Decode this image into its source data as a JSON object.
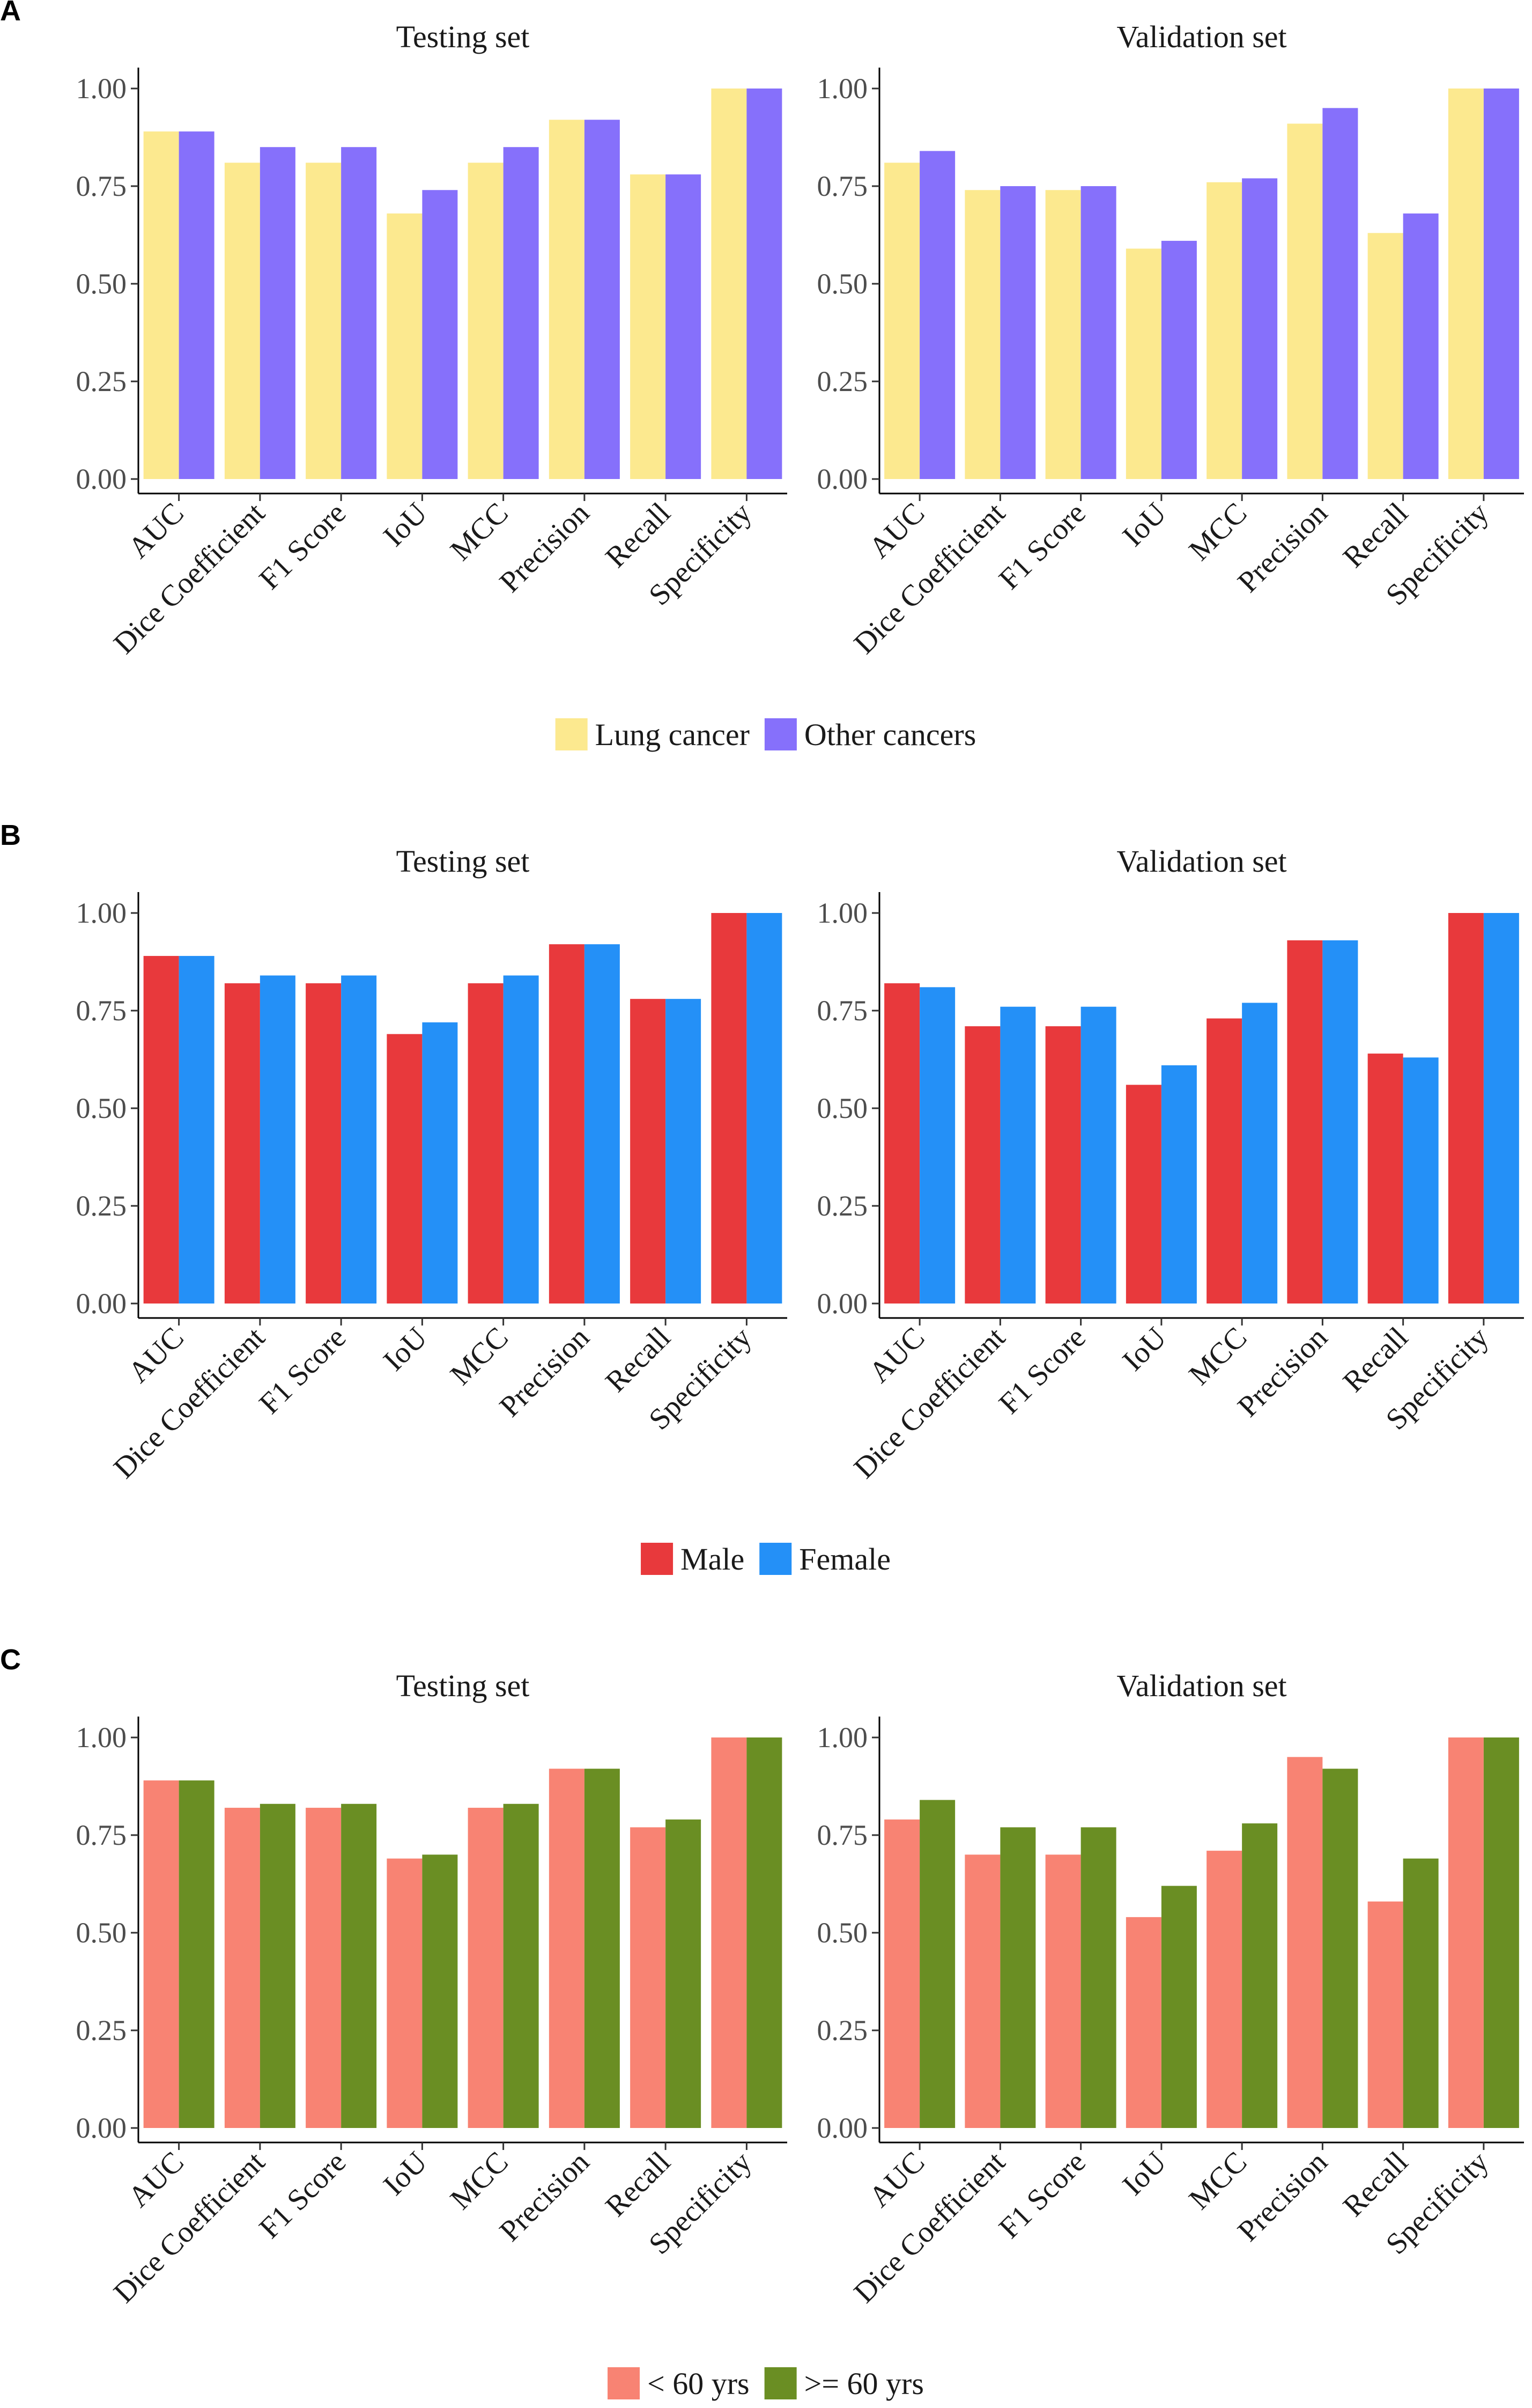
{
  "chart_data": [
    {
      "panel": "A",
      "type": "bar",
      "categories": [
        "AUC",
        "Dice Coefficient",
        "F1 Score",
        "IoU",
        "MCC",
        "Precision",
        "Recall",
        "Specificity"
      ],
      "legend": [
        {
          "name": "Lung cancer",
          "color": "#FCE98F"
        },
        {
          "name": "Other cancers",
          "color": "#8670FB"
        }
      ],
      "ylim": [
        0,
        1.0
      ],
      "yticks": [
        "0.00",
        "0.25",
        "0.50",
        "0.75",
        "1.00"
      ],
      "legend_position": "bottom",
      "grid": false,
      "facets": [
        {
          "title": "Testing set",
          "series": [
            {
              "name": "Lung cancer",
              "values": [
                0.89,
                0.81,
                0.81,
                0.68,
                0.81,
                0.92,
                0.78,
                1.0
              ]
            },
            {
              "name": "Other cancers",
              "values": [
                0.89,
                0.85,
                0.85,
                0.74,
                0.85,
                0.92,
                0.78,
                1.0
              ]
            }
          ]
        },
        {
          "title": "Validation set",
          "series": [
            {
              "name": "Lung cancer",
              "values": [
                0.81,
                0.74,
                0.74,
                0.59,
                0.76,
                0.91,
                0.63,
                1.0
              ]
            },
            {
              "name": "Other cancers",
              "values": [
                0.84,
                0.75,
                0.75,
                0.61,
                0.77,
                0.95,
                0.68,
                1.0
              ]
            }
          ]
        }
      ]
    },
    {
      "panel": "B",
      "type": "bar",
      "categories": [
        "AUC",
        "Dice Coefficient",
        "F1 Score",
        "IoU",
        "MCC",
        "Precision",
        "Recall",
        "Specificity"
      ],
      "legend": [
        {
          "name": "Male",
          "color": "#E8393C"
        },
        {
          "name": "Female",
          "color": "#2490F7"
        }
      ],
      "ylim": [
        0,
        1.0
      ],
      "yticks": [
        "0.00",
        "0.25",
        "0.50",
        "0.75",
        "1.00"
      ],
      "legend_position": "bottom",
      "grid": false,
      "facets": [
        {
          "title": "Testing set",
          "series": [
            {
              "name": "Male",
              "values": [
                0.89,
                0.82,
                0.82,
                0.69,
                0.82,
                0.92,
                0.78,
                1.0
              ]
            },
            {
              "name": "Female",
              "values": [
                0.89,
                0.84,
                0.84,
                0.72,
                0.84,
                0.92,
                0.78,
                1.0
              ]
            }
          ]
        },
        {
          "title": "Validation set",
          "series": [
            {
              "name": "Male",
              "values": [
                0.82,
                0.71,
                0.71,
                0.56,
                0.73,
                0.93,
                0.64,
                1.0
              ]
            },
            {
              "name": "Female",
              "values": [
                0.81,
                0.76,
                0.76,
                0.61,
                0.77,
                0.93,
                0.63,
                1.0
              ]
            }
          ]
        }
      ]
    },
    {
      "panel": "C",
      "type": "bar",
      "categories": [
        "AUC",
        "Dice Coefficient",
        "F1 Score",
        "IoU",
        "MCC",
        "Precision",
        "Recall",
        "Specificity"
      ],
      "legend": [
        {
          "name": "< 60 yrs",
          "color": "#F88373"
        },
        {
          "name": ">= 60 yrs",
          "color": "#6A8E23"
        }
      ],
      "ylim": [
        0,
        1.0
      ],
      "yticks": [
        "0.00",
        "0.25",
        "0.50",
        "0.75",
        "1.00"
      ],
      "legend_position": "bottom",
      "grid": false,
      "facets": [
        {
          "title": "Testing set",
          "series": [
            {
              "name": "< 60 yrs",
              "values": [
                0.89,
                0.82,
                0.82,
                0.69,
                0.82,
                0.92,
                0.77,
                1.0
              ]
            },
            {
              "name": ">= 60 yrs",
              "values": [
                0.89,
                0.83,
                0.83,
                0.7,
                0.83,
                0.92,
                0.79,
                1.0
              ]
            }
          ]
        },
        {
          "title": "Validation set",
          "series": [
            {
              "name": "< 60 yrs",
              "values": [
                0.79,
                0.7,
                0.7,
                0.54,
                0.71,
                0.95,
                0.58,
                1.0
              ]
            },
            {
              "name": ">= 60 yrs",
              "values": [
                0.84,
                0.77,
                0.77,
                0.62,
                0.78,
                0.92,
                0.69,
                1.0
              ]
            }
          ]
        }
      ]
    }
  ]
}
